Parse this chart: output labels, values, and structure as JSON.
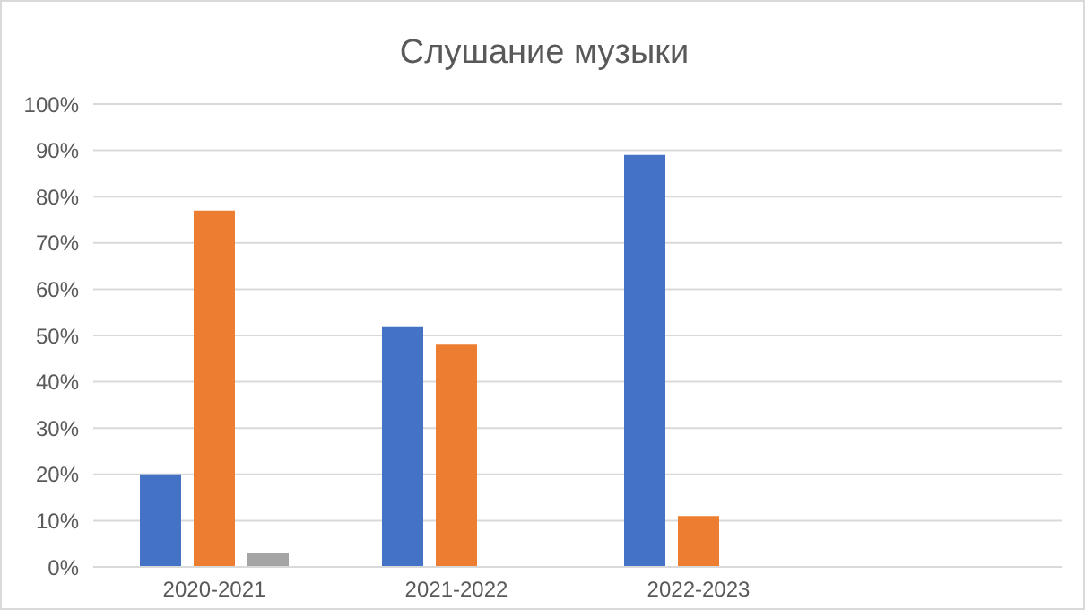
{
  "chart_data": {
    "type": "bar",
    "title": "Слушание музыки",
    "categories": [
      "2020-2021",
      "2021-2022",
      "2022-2023",
      null
    ],
    "series": [
      {
        "color": "#4472c4",
        "values": [
          20,
          52,
          89,
          null
        ]
      },
      {
        "color": "#ed7d31",
        "values": [
          77,
          48,
          11,
          null
        ]
      },
      {
        "color": "#a5a5a5",
        "values": [
          3,
          null,
          null,
          null
        ]
      }
    ],
    "ylim": [
      0,
      100
    ],
    "yticks": [
      {
        "value": 0,
        "label": "0%"
      },
      {
        "value": 10,
        "label": "10%"
      },
      {
        "value": 20,
        "label": "20%"
      },
      {
        "value": 30,
        "label": "30%"
      },
      {
        "value": 40,
        "label": "40%"
      },
      {
        "value": 50,
        "label": "50%"
      },
      {
        "value": 60,
        "label": "60%"
      },
      {
        "value": 70,
        "label": "70%"
      },
      {
        "value": 80,
        "label": "80%"
      },
      {
        "value": 90,
        "label": "90%"
      },
      {
        "value": 100,
        "label": "100%"
      }
    ],
    "grid": "y"
  }
}
